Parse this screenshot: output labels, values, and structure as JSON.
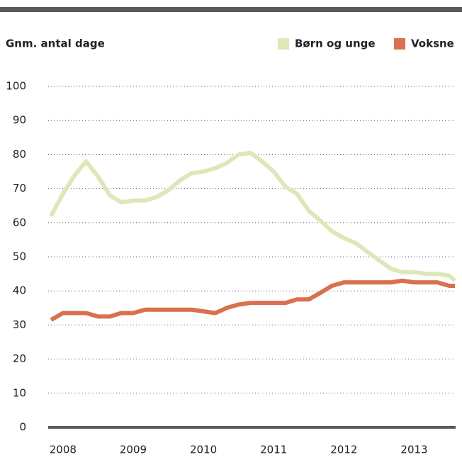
{
  "chart_data": {
    "type": "line",
    "y_label": "Gnm. antal dage",
    "x": [
      2007.83,
      2008,
      2008.17,
      2008.33,
      2008.5,
      2008.67,
      2008.83,
      2009,
      2009.17,
      2009.33,
      2009.5,
      2009.67,
      2009.83,
      2010,
      2010.17,
      2010.33,
      2010.5,
      2010.67,
      2010.83,
      2011,
      2011.17,
      2011.33,
      2011.5,
      2011.67,
      2011.83,
      2012,
      2012.17,
      2012.33,
      2012.5,
      2012.67,
      2012.83,
      2013,
      2013.17,
      2013.33,
      2013.5,
      2013.58
    ],
    "series": [
      {
        "name": "Børn og unge",
        "color": "#dde8b9",
        "values": [
          62,
          68.5,
          74,
          78,
          73.5,
          68,
          66,
          66.5,
          66.5,
          67.5,
          69.5,
          72.5,
          74.5,
          75,
          76,
          77.5,
          80,
          80.5,
          78,
          75,
          70.5,
          68.5,
          63.5,
          60.5,
          57.5,
          55.5,
          54,
          51.5,
          49,
          46.5,
          45.5,
          45.5,
          45,
          45,
          44.5,
          43
        ]
      },
      {
        "name": "Voksne",
        "color": "#d9704f",
        "values": [
          31.5,
          33.5,
          33.5,
          33.5,
          32.5,
          32.5,
          33.5,
          33.5,
          34.5,
          34.5,
          34.5,
          34.5,
          34.5,
          34,
          33.5,
          35,
          36,
          36.5,
          36.5,
          36.5,
          36.5,
          37.5,
          37.5,
          39.5,
          41.5,
          42.5,
          42.5,
          42.5,
          42.5,
          42.5,
          43,
          42.5,
          42.5,
          42.5,
          41.5,
          41.5
        ]
      }
    ],
    "xlim": [
      2007.83,
      2013.58
    ],
    "xticks": [
      2008,
      2009,
      2010,
      2011,
      2012,
      2013
    ],
    "ylim": [
      0,
      100
    ],
    "yticks": [
      0,
      10,
      20,
      30,
      40,
      50,
      60,
      70,
      80,
      90,
      100
    ],
    "grid": true,
    "legend": "top-right"
  }
}
